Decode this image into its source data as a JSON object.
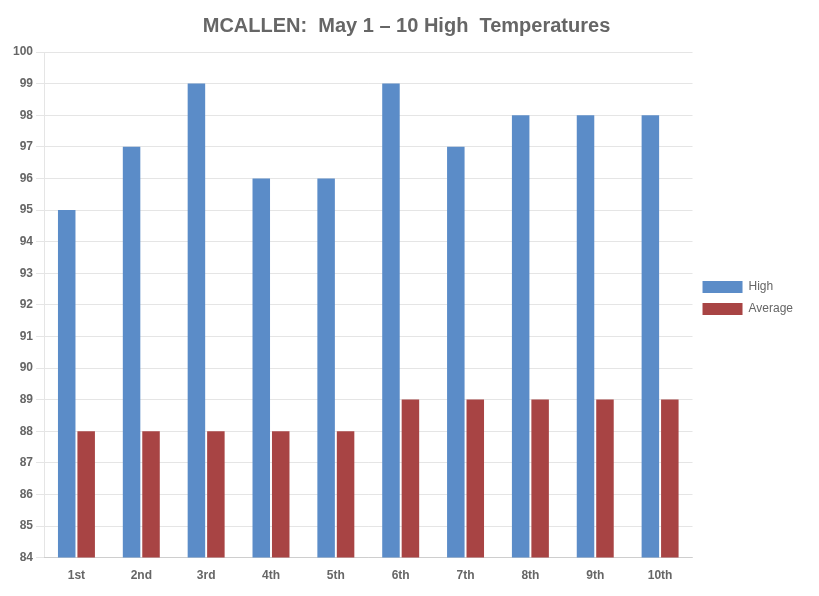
{
  "chart_data": {
    "type": "bar",
    "title": "MCALLEN:  May 1 – 10 High  Temperatures",
    "categories": [
      "1st",
      "2nd",
      "3rd",
      "4th",
      "5th",
      "6th",
      "7th",
      "8th",
      "9th",
      "10th"
    ],
    "series": [
      {
        "name": "High",
        "color": "#5b8cc8",
        "values": [
          95,
          97,
          99,
          96,
          96,
          99,
          97,
          98,
          98,
          98
        ]
      },
      {
        "name": "Average",
        "color": "#a84444",
        "values": [
          88,
          88,
          88,
          88,
          88,
          89,
          89,
          89,
          89,
          89
        ]
      }
    ],
    "ylim": [
      84,
      100
    ],
    "yticks": [
      84,
      85,
      86,
      87,
      88,
      89,
      90,
      91,
      92,
      93,
      94,
      95,
      96,
      97,
      98,
      99,
      100
    ],
    "grid": true,
    "legend": "right"
  }
}
